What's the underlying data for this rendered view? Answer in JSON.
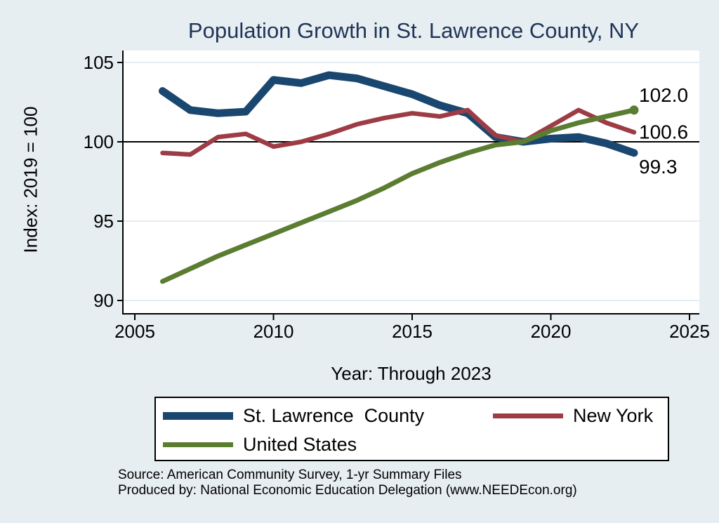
{
  "figure": {
    "notes": [
      "Source: American Community Survey, 1-yr Summary Files",
      "Produced by: National Economic Education Delegation (www.NEEDEcon.org)"
    ]
  },
  "colors": {
    "background": "#e7eef1",
    "plot_background": "#ffffff",
    "gridline": "#dce8f1",
    "axis": "#000000",
    "reference_line": "#000000",
    "title": "#1f3458"
  },
  "chart_data": {
    "type": "line",
    "title": "Population Growth in St. Lawrence County, NY",
    "xlabel": "Year: Through 2023",
    "ylabel": "Index: 2019 = 100",
    "x": [
      2006,
      2007,
      2008,
      2009,
      2010,
      2011,
      2012,
      2013,
      2014,
      2015,
      2016,
      2017,
      2018,
      2019,
      2020,
      2021,
      2022,
      2023
    ],
    "x_ticks": [
      2005,
      2010,
      2015,
      2020,
      2025
    ],
    "y_ticks": [
      90,
      95,
      100,
      105
    ],
    "xlim": [
      2004.6,
      2025.4
    ],
    "ylim": [
      89.2,
      105.8
    ],
    "reference_line_y": 100,
    "grid": true,
    "legend_position": "bottom",
    "series": [
      {
        "name": "St. Lawrence  County",
        "color": "#1a476f",
        "end_label": "99.3",
        "end_marker": false,
        "values": [
          103.2,
          102.0,
          101.8,
          101.9,
          103.9,
          103.7,
          104.2,
          104.0,
          103.5,
          103.0,
          102.3,
          101.8,
          100.3,
          100.0,
          100.2,
          100.3,
          99.9,
          99.3
        ]
      },
      {
        "name": "New York",
        "color": "#9d3c45",
        "end_label": "100.6",
        "end_marker": false,
        "values": [
          99.3,
          99.2,
          100.3,
          100.5,
          99.7,
          100.0,
          100.5,
          101.1,
          101.5,
          101.8,
          101.6,
          102.0,
          100.4,
          100.0,
          101.0,
          102.0,
          101.2,
          100.6
        ]
      },
      {
        "name": "United States",
        "color": "#5a7d31",
        "end_label": "102.0",
        "end_marker": true,
        "values": [
          91.2,
          92.0,
          92.8,
          93.5,
          94.2,
          94.9,
          95.6,
          96.3,
          97.1,
          98.0,
          98.7,
          99.3,
          99.8,
          100.0,
          100.7,
          101.2,
          101.6,
          102.0
        ]
      }
    ]
  }
}
